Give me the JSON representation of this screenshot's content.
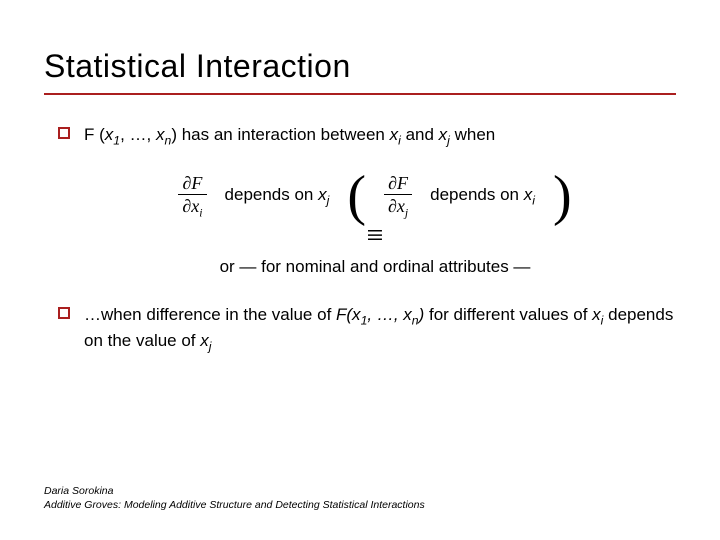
{
  "title": "Statistical Interaction",
  "accent_color": "#aa1f1f",
  "bullet1": {
    "pre": "F (",
    "x1": "x",
    "x1_sub": "1",
    "mid1": ", …, ",
    "xn": "x",
    "xn_sub": "n",
    "mid2": ") has an interaction between ",
    "xi": "x",
    "xi_sub": "i",
    "and": " and ",
    "xj": "x",
    "xj_sub": "j",
    "tail": "  when"
  },
  "equiv": {
    "partial_top": "∂F",
    "partial_bot_i_pre": "∂x",
    "partial_bot_i_sub": "i",
    "dep_on_xj_pre": "depends on ",
    "dep_on_xj_x": "x",
    "dep_on_xj_sub": "j",
    "lparen": "(",
    "partial_bot_j_pre": "∂x",
    "partial_bot_j_sub": "j",
    "dep_on_xi_pre": "depends on ",
    "dep_on_xi_x": "x",
    "dep_on_xi_sub": "i",
    "rparen": ")",
    "equiv_symbol": "≡",
    "nominal": "or — for nominal and ordinal attributes —"
  },
  "bullet2": {
    "pre": "…when difference in the value of ",
    "F": "F(x",
    "F_sub1": "1",
    "Fmid": ", …, x",
    "F_subn": "n",
    "Fclose": ")",
    "mid": " for different values of ",
    "xi": "x",
    "xi_sub": "i",
    "dep": " depends on the value of ",
    "xj": "x",
    "xj_sub": "j"
  },
  "footer": {
    "line1": "Daria Sorokina",
    "line2": "Additive Groves: Modeling Additive Structure and Detecting Statistical Interactions"
  }
}
